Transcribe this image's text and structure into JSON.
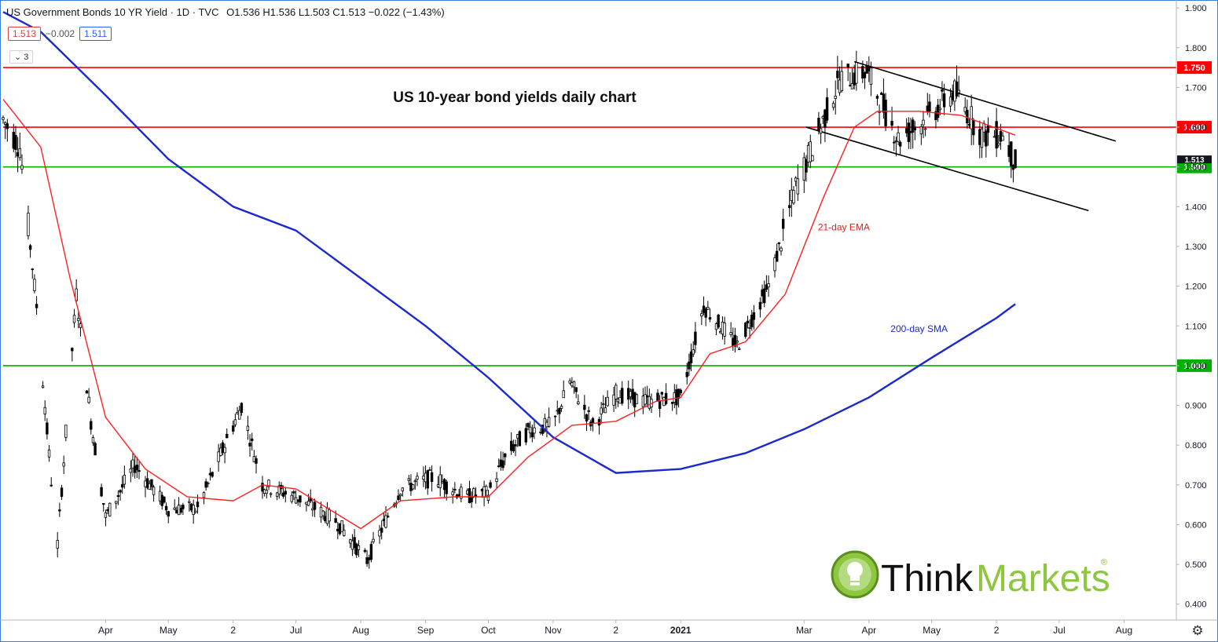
{
  "header": {
    "symbol_title": "US Government Bonds 10 YR Yield · 1D · TVC",
    "ohlc": "O1.536 H1.536 L1.503 C1.513 −0.022 (−1.43%)",
    "chip_left": "1.513",
    "chip_mid": "−0.002",
    "chip_right": "1.511",
    "collapse_label": "3"
  },
  "chart_data": {
    "type": "candlestick",
    "title": "US 10-year bond yields daily chart",
    "ylim": [
      0.36,
      1.92
    ],
    "y_ticks": [
      "1.900",
      "1.800",
      "1.700",
      "1.600",
      "1.500",
      "1.400",
      "1.300",
      "1.200",
      "1.100",
      "1.000",
      "0.900",
      "0.800",
      "0.700",
      "0.600",
      "0.500",
      "0.400"
    ],
    "x_ticks": [
      "Apr",
      "May",
      "2",
      "Jul",
      "Aug",
      "Sep",
      "Oct",
      "Nov",
      "2",
      "2021",
      "Mar",
      "Apr",
      "May",
      "2",
      "Jul",
      "Aug"
    ],
    "x_tick_dates": [
      "2020-04-01",
      "2020-05-01",
      "2020-06-01",
      "2020-07-01",
      "2020-08-01",
      "2020-09-01",
      "2020-10-01",
      "2020-11-01",
      "2020-12-01",
      "2021-01-01",
      "2021-03-01",
      "2021-04-01",
      "2021-05-01",
      "2021-06-01",
      "2021-07-01",
      "2021-08-01"
    ],
    "x_range": [
      "2020-02-12",
      "2021-08-26"
    ],
    "horizontal_levels": [
      {
        "value": 1.75,
        "label": "1.750",
        "color": "#ff0000"
      },
      {
        "value": 1.6,
        "label": "1.600",
        "color": "#ff0000"
      },
      {
        "value": 1.5,
        "label": "1.500",
        "color": "#00b000"
      },
      {
        "value": 1.0,
        "label": "1.000",
        "color": "#00b000"
      }
    ],
    "price_tag_dark": "1.513",
    "annotations": [
      {
        "text": "21-day EMA",
        "color": "#e02020",
        "x": "2021-03-20",
        "y": 1.34
      },
      {
        "text": "200-day SMA",
        "color": "#1a2acc",
        "x": "2021-04-25",
        "y": 1.085
      }
    ],
    "channel_lines": [
      {
        "x1": "2021-03-25",
        "y1": 1.765,
        "x2": "2021-07-28",
        "y2": 1.565
      },
      {
        "x1": "2021-03-02",
        "y1": 1.6,
        "x2": "2021-07-15",
        "y2": 1.39
      }
    ],
    "series": [
      {
        "name": "200-day SMA",
        "color": "#1a2acc",
        "points": [
          [
            "2020-02-12",
            1.89
          ],
          [
            "2020-03-01",
            1.84
          ],
          [
            "2020-04-01",
            1.68
          ],
          [
            "2020-05-01",
            1.52
          ],
          [
            "2020-06-01",
            1.4
          ],
          [
            "2020-07-01",
            1.34
          ],
          [
            "2020-08-01",
            1.22
          ],
          [
            "2020-09-01",
            1.1
          ],
          [
            "2020-10-01",
            0.97
          ],
          [
            "2020-11-01",
            0.82
          ],
          [
            "2020-12-01",
            0.73
          ],
          [
            "2021-01-01",
            0.74
          ],
          [
            "2021-02-01",
            0.78
          ],
          [
            "2021-03-01",
            0.84
          ],
          [
            "2021-04-01",
            0.92
          ],
          [
            "2021-05-01",
            1.02
          ],
          [
            "2021-06-01",
            1.12
          ],
          [
            "2021-06-10",
            1.155
          ]
        ]
      },
      {
        "name": "21-day EMA",
        "color": "#ff2020",
        "points": [
          [
            "2020-02-12",
            1.67
          ],
          [
            "2020-03-01",
            1.55
          ],
          [
            "2020-03-15",
            1.22
          ],
          [
            "2020-04-01",
            0.87
          ],
          [
            "2020-04-20",
            0.74
          ],
          [
            "2020-05-10",
            0.67
          ],
          [
            "2020-06-01",
            0.66
          ],
          [
            "2020-06-15",
            0.7
          ],
          [
            "2020-07-01",
            0.69
          ],
          [
            "2020-08-01",
            0.59
          ],
          [
            "2020-08-20",
            0.66
          ],
          [
            "2020-09-15",
            0.67
          ],
          [
            "2020-10-01",
            0.67
          ],
          [
            "2020-10-20",
            0.77
          ],
          [
            "2020-11-10",
            0.85
          ],
          [
            "2020-12-01",
            0.86
          ],
          [
            "2020-12-20",
            0.91
          ],
          [
            "2021-01-01",
            0.92
          ],
          [
            "2021-01-15",
            1.03
          ],
          [
            "2021-02-01",
            1.06
          ],
          [
            "2021-02-20",
            1.18
          ],
          [
            "2021-03-10",
            1.42
          ],
          [
            "2021-03-25",
            1.6
          ],
          [
            "2021-04-05",
            1.64
          ],
          [
            "2021-04-25",
            1.64
          ],
          [
            "2021-05-15",
            1.63
          ],
          [
            "2021-06-10",
            1.58
          ]
        ]
      },
      {
        "name": "Yield",
        "color": "#000000",
        "points": [
          [
            "2020-02-12",
            1.62
          ],
          [
            "2020-02-20",
            1.55
          ],
          [
            "2020-02-28",
            1.15
          ],
          [
            "2020-03-06",
            0.71
          ],
          [
            "2020-03-09",
            0.55
          ],
          [
            "2020-03-18",
            1.18
          ],
          [
            "2020-03-25",
            0.86
          ],
          [
            "2020-04-01",
            0.62
          ],
          [
            "2020-04-15",
            0.75
          ],
          [
            "2020-05-01",
            0.64
          ],
          [
            "2020-05-15",
            0.64
          ],
          [
            "2020-06-05",
            0.9
          ],
          [
            "2020-06-15",
            0.7
          ],
          [
            "2020-07-01",
            0.67
          ],
          [
            "2020-07-20",
            0.61
          ],
          [
            "2020-08-04",
            0.51
          ],
          [
            "2020-08-20",
            0.69
          ],
          [
            "2020-09-05",
            0.72
          ],
          [
            "2020-09-20",
            0.67
          ],
          [
            "2020-10-01",
            0.68
          ],
          [
            "2020-10-10",
            0.78
          ],
          [
            "2020-10-21",
            0.84
          ],
          [
            "2020-11-01",
            0.85
          ],
          [
            "2020-11-09",
            0.96
          ],
          [
            "2020-11-20",
            0.85
          ],
          [
            "2020-12-01",
            0.93
          ],
          [
            "2020-12-15",
            0.91
          ],
          [
            "2021-01-01",
            0.92
          ],
          [
            "2021-01-12",
            1.15
          ],
          [
            "2021-01-28",
            1.05
          ],
          [
            "2021-02-12",
            1.2
          ],
          [
            "2021-02-25",
            1.45
          ],
          [
            "2021-03-05",
            1.55
          ],
          [
            "2021-03-18",
            1.72
          ],
          [
            "2021-03-31",
            1.74
          ],
          [
            "2021-04-15",
            1.57
          ],
          [
            "2021-04-28",
            1.62
          ],
          [
            "2021-05-12",
            1.69
          ],
          [
            "2021-05-25",
            1.58
          ],
          [
            "2021-06-04",
            1.58
          ],
          [
            "2021-06-10",
            1.51
          ]
        ]
      }
    ]
  },
  "branding": {
    "logo_text_dark": "Think",
    "logo_text_green": "Markets",
    "registered": "®"
  }
}
